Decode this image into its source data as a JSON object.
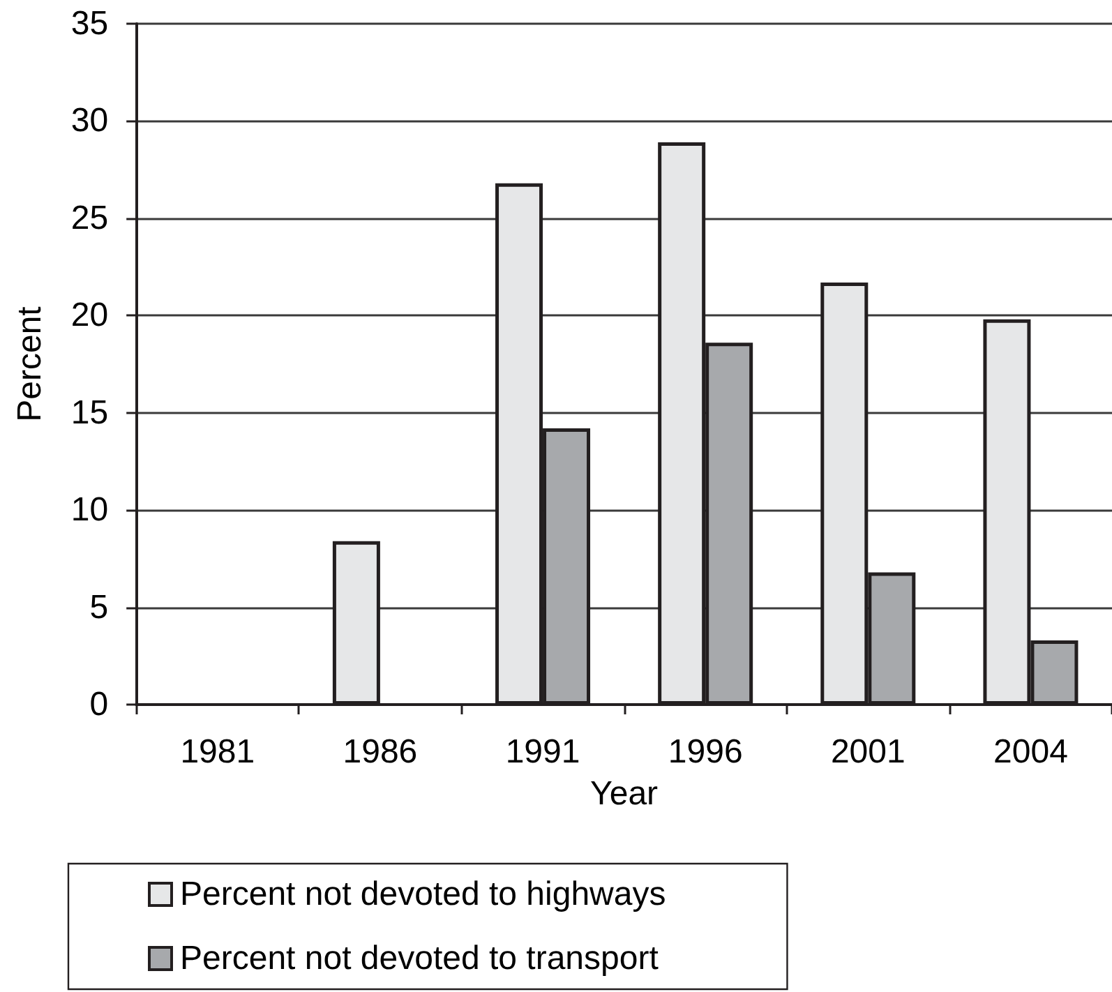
{
  "chart_data": {
    "type": "bar",
    "xlabel": "Year",
    "ylabel": "Percent",
    "categories": [
      "1981",
      "1986",
      "1991",
      "1996",
      "2001",
      "2004"
    ],
    "series": [
      {
        "name": "Percent not devoted to highways",
        "color": "#e6e7e8",
        "values": [
          null,
          8.4,
          26.8,
          28.9,
          21.7,
          19.8
        ]
      },
      {
        "name": "Percent not devoted to transport",
        "color": "#a7a9ac",
        "values": [
          null,
          null,
          14.2,
          18.6,
          6.8,
          3.3
        ]
      }
    ],
    "ylim": [
      0,
      35
    ],
    "yticks": [
      0,
      5,
      10,
      15,
      20,
      25,
      30,
      35
    ],
    "grid": "y",
    "legend": "bottom left"
  }
}
